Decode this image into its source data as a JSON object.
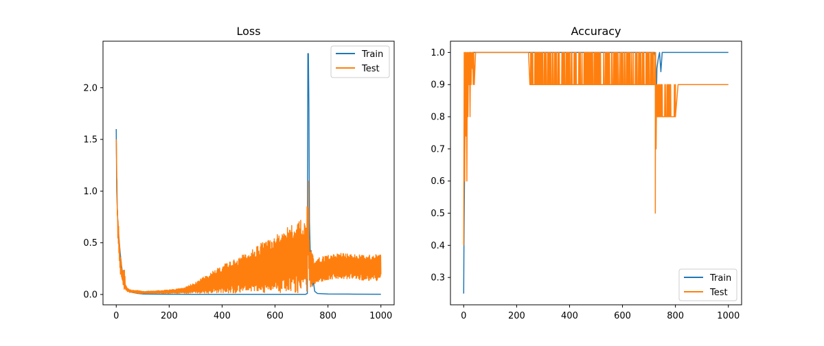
{
  "chart_data": [
    {
      "type": "line",
      "title": "Loss",
      "xlabel": "",
      "ylabel": "",
      "xlim": [
        -50,
        1050
      ],
      "ylim": [
        -0.1,
        2.45
      ],
      "xticks": [
        0,
        200,
        400,
        600,
        800,
        1000
      ],
      "xtick_labels": [
        "0",
        "200",
        "400",
        "600",
        "800",
        "1000"
      ],
      "yticks": [
        0.0,
        0.5,
        1.0,
        1.5,
        2.0
      ],
      "ytick_labels": [
        "0.0",
        "0.5",
        "1.0",
        "1.5",
        "2.0"
      ],
      "grid": false,
      "legend": {
        "position": "upper right",
        "entries": [
          "Train",
          "Test"
        ]
      },
      "series": [
        {
          "name": "Train",
          "color": "#1f77b4",
          "x": [
            0,
            2,
            5,
            10,
            15,
            20,
            25,
            30,
            40,
            50,
            60,
            80,
            100,
            150,
            200,
            300,
            400,
            500,
            600,
            700,
            715,
            722,
            724,
            726,
            728,
            730,
            735,
            740,
            745,
            750,
            760,
            800,
            900,
            1000
          ],
          "y": [
            1.6,
            1.0,
            0.75,
            0.55,
            0.4,
            0.28,
            0.18,
            0.12,
            0.06,
            0.03,
            0.02,
            0.01,
            0.005,
            0.003,
            0.002,
            0.001,
            0.001,
            0.001,
            0.001,
            0.001,
            0.001,
            0.01,
            2.33,
            2.33,
            1.8,
            0.7,
            0.2,
            0.08,
            0.12,
            0.03,
            0.01,
            0.005,
            0.003,
            0.002
          ]
        },
        {
          "name": "Test",
          "color": "#ff7f0e",
          "trend_x": [
            0,
            5,
            10,
            15,
            20,
            25,
            30,
            35,
            40,
            50,
            60,
            80,
            100,
            150,
            200,
            250,
            300,
            350,
            400,
            450,
            500,
            550,
            600,
            650,
            700,
            720,
            725,
            730,
            740,
            750,
            760,
            800,
            850,
            900,
            950,
            1000
          ],
          "trend_low": [
            1.5,
            0.55,
            0.35,
            0.2,
            0.15,
            0.1,
            0.05,
            0.04,
            0.03,
            0.02,
            0.02,
            0.01,
            0.01,
            0.01,
            0.01,
            0.01,
            0.01,
            0.01,
            0.01,
            0.01,
            0.01,
            0.01,
            0.01,
            0.01,
            0.01,
            0.01,
            0.3,
            0.05,
            0.08,
            0.1,
            0.12,
            0.14,
            0.15,
            0.15,
            0.13,
            0.13
          ],
          "trend_high": [
            1.5,
            0.9,
            0.6,
            0.4,
            0.3,
            0.2,
            0.3,
            0.1,
            0.07,
            0.05,
            0.04,
            0.04,
            0.03,
            0.035,
            0.045,
            0.06,
            0.12,
            0.2,
            0.28,
            0.35,
            0.42,
            0.5,
            0.58,
            0.66,
            0.73,
            0.8,
            1.13,
            0.5,
            0.4,
            0.32,
            0.35,
            0.38,
            0.4,
            0.39,
            0.38,
            0.39
          ]
        }
      ]
    },
    {
      "type": "line",
      "title": "Accuracy",
      "xlabel": "",
      "ylabel": "",
      "xlim": [
        -50,
        1050
      ],
      "ylim": [
        0.215,
        1.035
      ],
      "xticks": [
        0,
        200,
        400,
        600,
        800,
        1000
      ],
      "xtick_labels": [
        "0",
        "200",
        "400",
        "600",
        "800",
        "1000"
      ],
      "yticks": [
        0.3,
        0.4,
        0.5,
        0.6,
        0.7,
        0.8,
        0.9,
        1.0
      ],
      "ytick_labels": [
        "0.3",
        "0.4",
        "0.5",
        "0.6",
        "0.7",
        "0.8",
        "0.9",
        "1.0"
      ],
      "grid": false,
      "legend": {
        "position": "lower right",
        "entries": [
          "Train",
          "Test"
        ]
      },
      "series": [
        {
          "name": "Train",
          "color": "#1f77b4",
          "x": [
            0,
            1,
            3,
            5,
            8,
            10,
            15,
            20,
            25,
            30,
            35,
            40,
            50,
            100,
            200,
            300,
            400,
            500,
            600,
            700,
            720,
            725,
            728,
            730,
            735,
            740,
            745,
            750,
            800,
            1000
          ],
          "y": [
            0.25,
            0.4,
            0.6,
            0.8,
            0.9,
            0.95,
            0.97,
            0.98,
            1.0,
            0.98,
            1.0,
            1.0,
            1.0,
            1.0,
            1.0,
            1.0,
            1.0,
            1.0,
            1.0,
            1.0,
            1.0,
            0.98,
            0.85,
            0.95,
            0.98,
            1.0,
            0.94,
            1.0,
            1.0,
            1.0
          ]
        },
        {
          "name": "Test",
          "color": "#ff7f0e",
          "x": [
            0,
            2,
            4,
            6,
            8,
            10,
            12,
            14,
            16,
            18,
            20,
            22,
            24,
            26,
            28,
            30,
            32,
            34,
            36,
            38,
            40,
            45,
            50,
            100,
            150,
            200,
            245,
            250,
            300,
            350,
            400,
            450,
            500,
            550,
            600,
            650,
            700,
            720,
            722,
            724,
            726,
            728,
            730,
            735,
            740,
            745,
            750,
            760,
            770,
            780,
            790,
            800,
            810,
            850,
            900,
            950,
            1000
          ],
          "y": [
            0.4,
            1.0,
            0.6,
            1.0,
            0.74,
            1.0,
            0.6,
            1.0,
            0.8,
            1.0,
            0.9,
            1.0,
            0.8,
            1.0,
            0.9,
            1.0,
            0.95,
            1.0,
            0.9,
            1.0,
            0.9,
            1.0,
            1.0,
            1.0,
            1.0,
            1.0,
            1.0,
            0.9,
            1.0,
            0.9,
            1.0,
            0.9,
            1.0,
            0.9,
            1.0,
            0.9,
            1.0,
            0.9,
            1.0,
            0.5,
            1.0,
            0.7,
            0.9,
            0.8,
            0.9,
            0.8,
            0.9,
            0.8,
            0.9,
            0.8,
            0.9,
            0.8,
            0.9,
            0.9,
            0.9,
            0.9,
            0.9
          ],
          "oscillation_range": [
            [
              250,
              725,
              0.9,
              1.0
            ],
            [
              725,
              800,
              0.8,
              0.9
            ]
          ]
        }
      ]
    }
  ]
}
